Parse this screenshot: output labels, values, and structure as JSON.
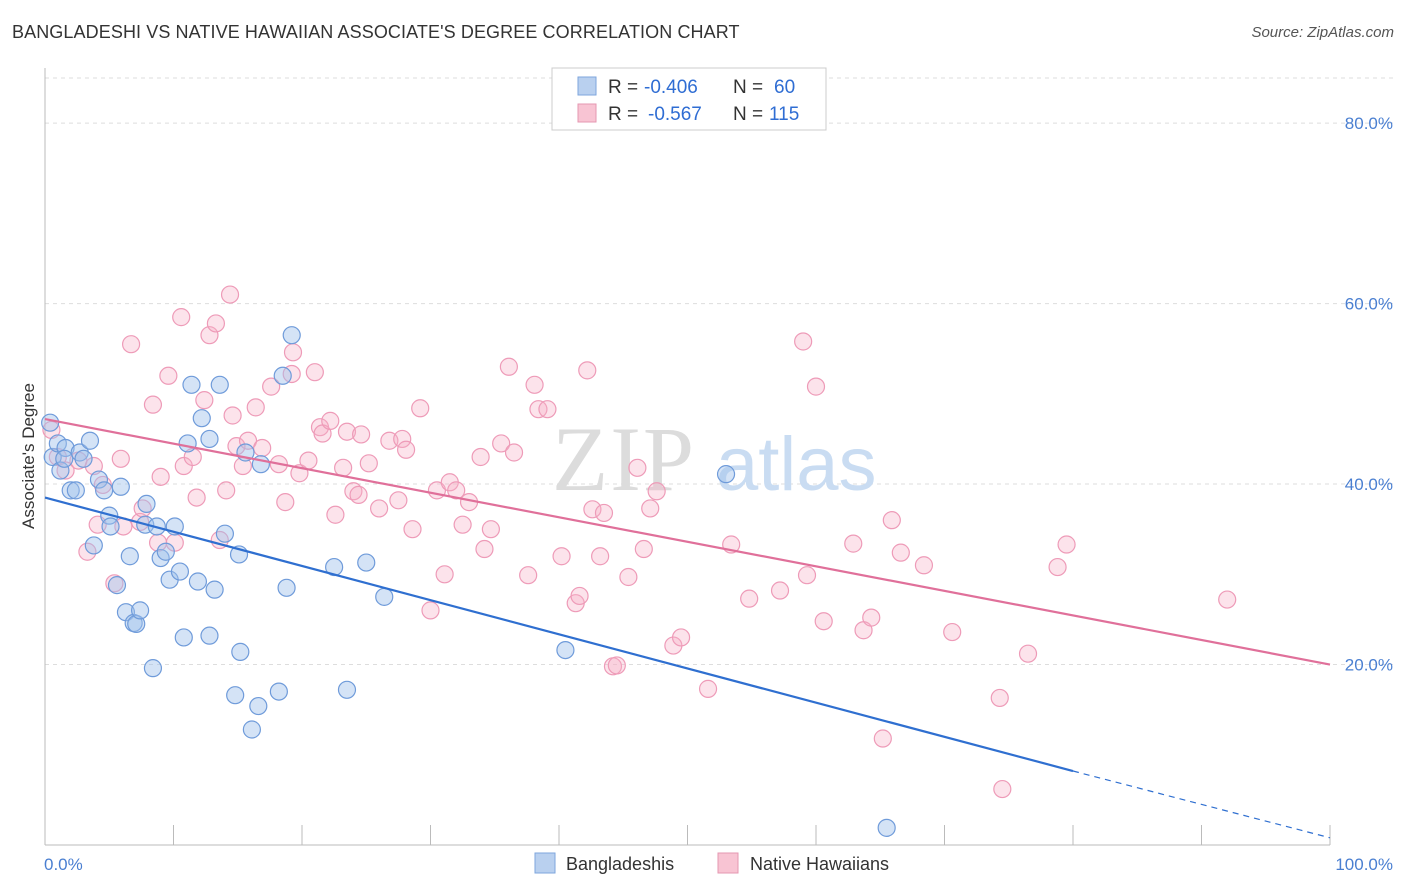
{
  "title": "BANGLADESHI VS NATIVE HAWAIIAN ASSOCIATE'S DEGREE CORRELATION CHART",
  "source": "Source: ZipAtlas.com",
  "watermark": {
    "zip": "ZIP",
    "atlas": "atlas"
  },
  "legend": {
    "rows": [
      {
        "r_label": "R =",
        "r_value": "-0.406",
        "n_label": "N =",
        "n_value": "60"
      },
      {
        "r_label": "R =",
        "r_value": "-0.567",
        "n_label": "N =",
        "n_value": "115"
      }
    ]
  },
  "bottom_legend": [
    "Bangladeshis",
    "Native Hawaiians"
  ],
  "chart_data": {
    "type": "scatter",
    "title": "BANGLADESHI VS NATIVE HAWAIIAN ASSOCIATE'S DEGREE CORRELATION CHART",
    "xlabel": "",
    "ylabel": "Associate's Degree",
    "xlim": [
      0,
      100
    ],
    "ylim": [
      0,
      85
    ],
    "x_tick_labels": [
      "0.0%",
      "100.0%"
    ],
    "y_ticks": [
      20,
      40,
      60,
      80
    ],
    "y_tick_labels": [
      "20.0%",
      "40.0%",
      "60.0%",
      "80.0%"
    ],
    "grid": true,
    "legend_position": "top-center",
    "colors": {
      "bangladeshis": "#5b8fd6",
      "native_hawaiians": "#e98aaa",
      "blue_line": "#2f6fd0",
      "pink_line": "#e0709a"
    },
    "series": [
      {
        "name": "Bangladeshis",
        "r": -0.406,
        "n": 60,
        "trend": {
          "x0": 0,
          "y0": 38.5,
          "x1": 80,
          "y1": 8.2,
          "dash_to_x": 100,
          "dash_to_y": 0.8
        },
        "points": [
          [
            0.4,
            46.8
          ],
          [
            0.6,
            43
          ],
          [
            1,
            44.5
          ],
          [
            1.2,
            41.5
          ],
          [
            1.6,
            44
          ],
          [
            2,
            39.3
          ],
          [
            2.4,
            39.3
          ],
          [
            2.7,
            43.5
          ],
          [
            3,
            42.8
          ],
          [
            3.5,
            44.8
          ],
          [
            3.8,
            33.2
          ],
          [
            4.2,
            40.5
          ],
          [
            4.6,
            39.3
          ],
          [
            5,
            36.5
          ],
          [
            5.1,
            35.3
          ],
          [
            5.6,
            28.8
          ],
          [
            5.9,
            39.7
          ],
          [
            6.3,
            25.8
          ],
          [
            6.6,
            32
          ],
          [
            6.9,
            24.6
          ],
          [
            7.1,
            24.5
          ],
          [
            7.4,
            26
          ],
          [
            7.8,
            35.5
          ],
          [
            7.9,
            37.8
          ],
          [
            8.4,
            19.6
          ],
          [
            8.7,
            35.3
          ],
          [
            9,
            31.8
          ],
          [
            9.4,
            32.5
          ],
          [
            9.7,
            29.4
          ],
          [
            10.1,
            35.3
          ],
          [
            10.5,
            30.3
          ],
          [
            10.8,
            23
          ],
          [
            11.1,
            44.5
          ],
          [
            11.4,
            51
          ],
          [
            11.9,
            29.2
          ],
          [
            12.2,
            47.3
          ],
          [
            12.8,
            45
          ],
          [
            12.8,
            23.2
          ],
          [
            13.2,
            28.3
          ],
          [
            13.6,
            51
          ],
          [
            14,
            34.5
          ],
          [
            14.8,
            16.6
          ],
          [
            15.1,
            32.2
          ],
          [
            15.2,
            21.4
          ],
          [
            15.6,
            43.5
          ],
          [
            16.1,
            12.8
          ],
          [
            16.6,
            15.4
          ],
          [
            16.8,
            42.2
          ],
          [
            18.2,
            17
          ],
          [
            18.5,
            52
          ],
          [
            18.8,
            28.5
          ],
          [
            19.2,
            56.5
          ],
          [
            22.5,
            30.8
          ],
          [
            23.5,
            17.2
          ],
          [
            25,
            31.3
          ],
          [
            26.4,
            27.5
          ],
          [
            40.5,
            21.6
          ],
          [
            53,
            41.1
          ],
          [
            65.5,
            1.9
          ],
          [
            1.5,
            42.8
          ]
        ]
      },
      {
        "name": "Native Hawaiians",
        "r": -0.567,
        "n": 115,
        "trend": {
          "x0": 0,
          "y0": 47.2,
          "x1": 100,
          "y1": 20
        },
        "points": [
          [
            0.5,
            46
          ],
          [
            1,
            43
          ],
          [
            1.6,
            41.5
          ],
          [
            2.6,
            42.6
          ],
          [
            3.3,
            32.5
          ],
          [
            3.8,
            42
          ],
          [
            4.1,
            35.5
          ],
          [
            4.5,
            39.9
          ],
          [
            5.4,
            29
          ],
          [
            5.9,
            42.8
          ],
          [
            6.1,
            35.3
          ],
          [
            6.7,
            55.5
          ],
          [
            7.4,
            35.8
          ],
          [
            7.6,
            37.3
          ],
          [
            8.4,
            48.8
          ],
          [
            8.8,
            33.5
          ],
          [
            9,
            40.8
          ],
          [
            9.6,
            52
          ],
          [
            10.1,
            33.5
          ],
          [
            10.6,
            58.5
          ],
          [
            10.8,
            42
          ],
          [
            11.5,
            43
          ],
          [
            11.8,
            38.5
          ],
          [
            12.4,
            49.3
          ],
          [
            12.8,
            56.5
          ],
          [
            13.3,
            57.8
          ],
          [
            13.6,
            33.8
          ],
          [
            14.1,
            39.3
          ],
          [
            14.4,
            61
          ],
          [
            14.6,
            47.6
          ],
          [
            14.9,
            44.2
          ],
          [
            15.4,
            42
          ],
          [
            15.8,
            44.8
          ],
          [
            16.4,
            48.5
          ],
          [
            16.9,
            44
          ],
          [
            17.6,
            50.8
          ],
          [
            18.2,
            42.2
          ],
          [
            18.7,
            38
          ],
          [
            19.2,
            52.2
          ],
          [
            19.3,
            54.6
          ],
          [
            19.8,
            41.2
          ],
          [
            20.5,
            42.6
          ],
          [
            21,
            52.4
          ],
          [
            21.4,
            46.3
          ],
          [
            21.6,
            45.6
          ],
          [
            22.2,
            47
          ],
          [
            22.6,
            36.6
          ],
          [
            23.2,
            41.8
          ],
          [
            23.5,
            45.8
          ],
          [
            24,
            39.2
          ],
          [
            24.4,
            38.8
          ],
          [
            24.6,
            45.5
          ],
          [
            25.2,
            42.3
          ],
          [
            26,
            37.3
          ],
          [
            26.8,
            44.8
          ],
          [
            27.5,
            38.2
          ],
          [
            27.8,
            45
          ],
          [
            28.1,
            43.8
          ],
          [
            28.6,
            35
          ],
          [
            29.2,
            48.4
          ],
          [
            30,
            26
          ],
          [
            30.5,
            39.3
          ],
          [
            31.1,
            30
          ],
          [
            31.5,
            40.2
          ],
          [
            32,
            39.3
          ],
          [
            32.5,
            35.5
          ],
          [
            33,
            38
          ],
          [
            33.9,
            43
          ],
          [
            34.2,
            32.8
          ],
          [
            34.7,
            35
          ],
          [
            35.5,
            44.5
          ],
          [
            36.1,
            53
          ],
          [
            36.5,
            43.5
          ],
          [
            37.6,
            29.9
          ],
          [
            38.1,
            51
          ],
          [
            38.4,
            48.3
          ],
          [
            39.1,
            48.3
          ],
          [
            40.2,
            32
          ],
          [
            41.3,
            26.8
          ],
          [
            41.6,
            27.6
          ],
          [
            42.2,
            52.6
          ],
          [
            42.6,
            37.2
          ],
          [
            43.2,
            32
          ],
          [
            43.5,
            36.8
          ],
          [
            44.2,
            19.8
          ],
          [
            44.5,
            19.9
          ],
          [
            45.4,
            29.7
          ],
          [
            46.1,
            41.8
          ],
          [
            46.6,
            32.8
          ],
          [
            47.1,
            37.3
          ],
          [
            47.6,
            39.2
          ],
          [
            48.9,
            22.1
          ],
          [
            49.5,
            23
          ],
          [
            51.6,
            17.3
          ],
          [
            53.4,
            33.3
          ],
          [
            54.8,
            27.3
          ],
          [
            57.2,
            28.2
          ],
          [
            59,
            55.8
          ],
          [
            59.3,
            29.9
          ],
          [
            60,
            50.8
          ],
          [
            60.6,
            24.8
          ],
          [
            62.9,
            33.4
          ],
          [
            63.7,
            23.8
          ],
          [
            64.3,
            25.2
          ],
          [
            65.2,
            11.8
          ],
          [
            65.9,
            36
          ],
          [
            66.6,
            32.4
          ],
          [
            68.4,
            31
          ],
          [
            70.6,
            23.6
          ],
          [
            74.3,
            16.3
          ],
          [
            74.5,
            6.2
          ],
          [
            76.5,
            21.2
          ],
          [
            78.8,
            30.8
          ],
          [
            79.5,
            33.3
          ],
          [
            92,
            27.2
          ]
        ]
      }
    ]
  }
}
